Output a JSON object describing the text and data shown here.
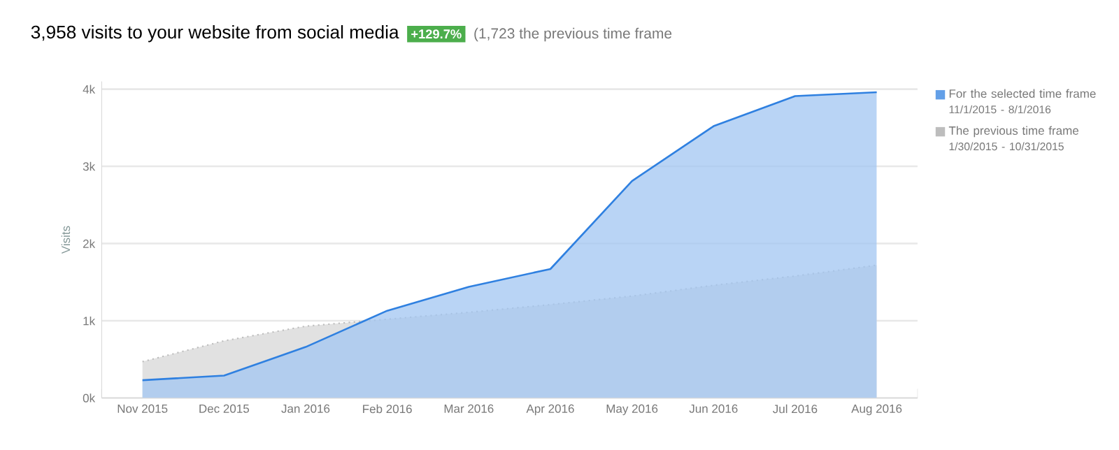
{
  "chart_data": {
    "type": "area",
    "title": "3,958 visits to your website from social media",
    "annotations": [
      "+129.7%",
      "(1,723 the previous time frame",
      "11/1/2015 - 8/1/2016",
      "1/30/2015 - 10/31/2015"
    ],
    "ylabel": "Visits",
    "categories": [
      "Nov 2015",
      "Dec 2015",
      "Jan 2016",
      "Feb 2016",
      "Mar 2016",
      "Apr 2016",
      "May 2016",
      "Jun 2016",
      "Jul 2016",
      "Aug 2016"
    ],
    "series": [
      {
        "name": "The previous time frame",
        "color": "#bdbdbd",
        "line_style": "dotted",
        "values": [
          470,
          740,
          930,
          1020,
          1110,
          1210,
          1320,
          1460,
          1580,
          1720
        ]
      },
      {
        "name": "For the selected time frame",
        "color": "#2f80e0",
        "line_style": "solid",
        "values": [
          230,
          290,
          660,
          1130,
          1440,
          1670,
          2810,
          3520,
          3910,
          3960
        ]
      }
    ],
    "ylim": [
      0,
      4100
    ],
    "yticks": [
      {
        "value": 0,
        "label": "0k"
      },
      {
        "value": 1000,
        "label": "1k"
      },
      {
        "value": 2000,
        "label": "2k"
      },
      {
        "value": 3000,
        "label": "3k"
      },
      {
        "value": 4000,
        "label": "4k"
      }
    ],
    "grid": "y",
    "legend": "top right"
  }
}
